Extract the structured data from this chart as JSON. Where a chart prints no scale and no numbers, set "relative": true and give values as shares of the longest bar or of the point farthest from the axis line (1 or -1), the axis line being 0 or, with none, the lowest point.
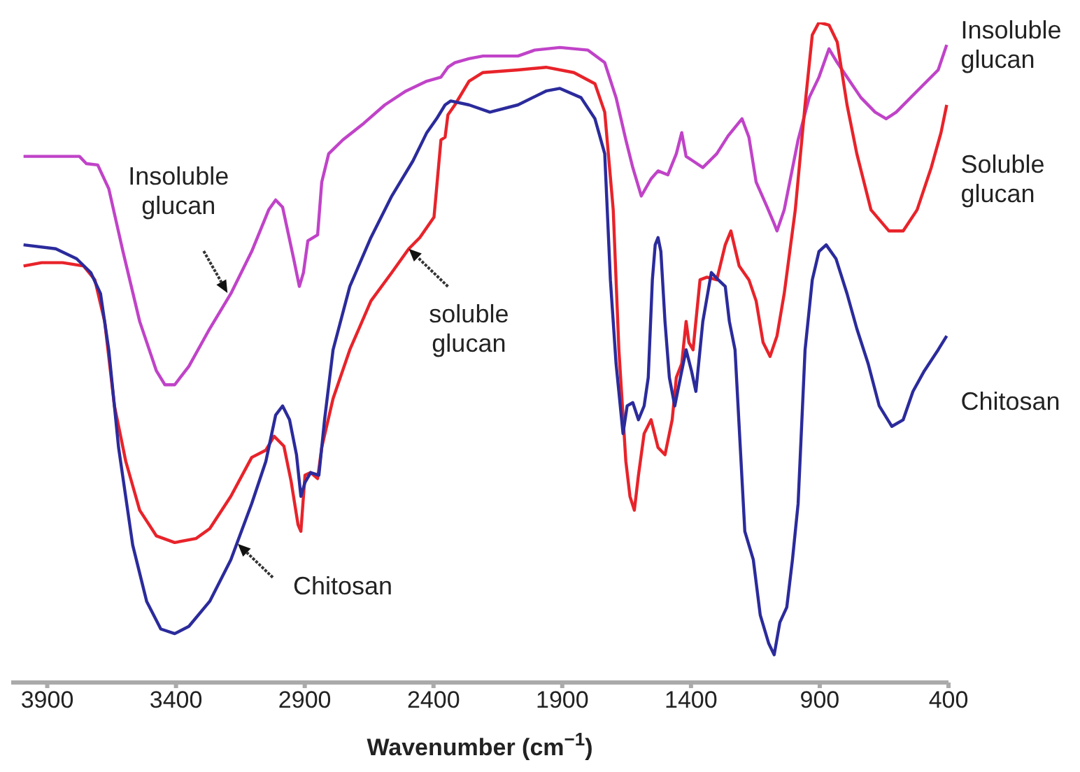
{
  "chart_data": {
    "type": "line",
    "relative": true,
    "xlabel": "Wavenumber (cm$^{−1}$)",
    "xlim": [
      4040,
      400
    ],
    "xticks": [
      3900,
      3400,
      2900,
      2400,
      1900,
      1400,
      900,
      400
    ],
    "series": [
      {
        "name": "Insoluble glucan",
        "color": "#c043c8",
        "x": [
          3992,
          3775,
          3748,
          3704,
          3661,
          3606,
          3541,
          3476,
          3443,
          3405,
          3350,
          3269,
          3187,
          3106,
          3040,
          3013,
          2986,
          2943,
          2921,
          2905,
          2888,
          2850,
          2834,
          2807,
          2752,
          2671,
          2589,
          2507,
          2426,
          2371,
          2344,
          2317,
          2262,
          2208,
          2072,
          2007,
          1909,
          1800,
          1735,
          1691,
          1653,
          1626,
          1593,
          1555,
          1528,
          1490,
          1457,
          1436,
          1419,
          1392,
          1354,
          1300,
          1256,
          1202,
          1175,
          1147,
          1104,
          1077,
          1066,
          1038,
          984,
          941,
          903,
          864,
          832,
          794,
          740,
          685,
          642,
          603,
          522,
          440,
          407
        ],
        "values": [
          0.797,
          0.797,
          0.786,
          0.784,
          0.748,
          0.653,
          0.547,
          0.472,
          0.451,
          0.451,
          0.479,
          0.536,
          0.589,
          0.653,
          0.716,
          0.731,
          0.72,
          0.642,
          0.6,
          0.621,
          0.669,
          0.678,
          0.758,
          0.801,
          0.822,
          0.847,
          0.875,
          0.896,
          0.911,
          0.917,
          0.932,
          0.939,
          0.945,
          0.949,
          0.949,
          0.958,
          0.962,
          0.958,
          0.939,
          0.886,
          0.822,
          0.78,
          0.737,
          0.763,
          0.775,
          0.769,
          0.801,
          0.833,
          0.797,
          0.79,
          0.78,
          0.801,
          0.828,
          0.854,
          0.826,
          0.758,
          0.72,
          0.695,
          0.684,
          0.716,
          0.822,
          0.886,
          0.917,
          0.96,
          0.939,
          0.917,
          0.886,
          0.864,
          0.854,
          0.864,
          0.896,
          0.928,
          0.966
        ]
      },
      {
        "name": "Soluble glucan",
        "color": "#e8232a",
        "x": [
          3992,
          3922,
          3840,
          3759,
          3715,
          3677,
          3639,
          3595,
          3541,
          3476,
          3405,
          3323,
          3269,
          3187,
          3106,
          3051,
          3019,
          2981,
          2953,
          2926,
          2915,
          2899,
          2877,
          2850,
          2834,
          2790,
          2725,
          2643,
          2562,
          2496,
          2453,
          2398,
          2371,
          2355,
          2344,
          2317,
          2262,
          2208,
          2072,
          1963,
          1855,
          1773,
          1735,
          1702,
          1680,
          1653,
          1637,
          1620,
          1604,
          1582,
          1555,
          1528,
          1501,
          1473,
          1457,
          1436,
          1419,
          1408,
          1392,
          1365,
          1338,
          1300,
          1267,
          1245,
          1213,
          1175,
          1147,
          1120,
          1093,
          1066,
          1038,
          995,
          957,
          929,
          903,
          864,
          832,
          794,
          756,
          701,
          631,
          576,
          522,
          467,
          429,
          407
        ],
        "values": [
          0.631,
          0.636,
          0.636,
          0.631,
          0.61,
          0.547,
          0.419,
          0.335,
          0.261,
          0.222,
          0.212,
          0.218,
          0.233,
          0.282,
          0.341,
          0.352,
          0.373,
          0.358,
          0.305,
          0.239,
          0.229,
          0.314,
          0.318,
          0.309,
          0.356,
          0.43,
          0.504,
          0.578,
          0.621,
          0.657,
          0.674,
          0.705,
          0.822,
          0.826,
          0.86,
          0.875,
          0.911,
          0.924,
          0.928,
          0.932,
          0.924,
          0.907,
          0.864,
          0.716,
          0.504,
          0.335,
          0.282,
          0.261,
          0.314,
          0.377,
          0.398,
          0.356,
          0.345,
          0.398,
          0.462,
          0.483,
          0.547,
          0.515,
          0.504,
          0.61,
          0.614,
          0.61,
          0.663,
          0.684,
          0.631,
          0.61,
          0.578,
          0.515,
          0.494,
          0.525,
          0.589,
          0.716,
          0.875,
          0.981,
          1,
          0.996,
          0.97,
          0.875,
          0.801,
          0.716,
          0.684,
          0.684,
          0.716,
          0.78,
          0.833,
          0.875
        ]
      },
      {
        "name": "Chitosan",
        "color": "#2b2b9c",
        "x": [
          3992,
          3867,
          3786,
          3731,
          3693,
          3661,
          3623,
          3568,
          3514,
          3459,
          3405,
          3350,
          3269,
          3187,
          3106,
          3051,
          3013,
          2986,
          2959,
          2932,
          2915,
          2899,
          2877,
          2845,
          2823,
          2790,
          2725,
          2643,
          2562,
          2480,
          2426,
          2388,
          2355,
          2333,
          2262,
          2181,
          2072,
          1963,
          1909,
          1827,
          1773,
          1735,
          1713,
          1691,
          1664,
          1648,
          1626,
          1604,
          1582,
          1566,
          1550,
          1539,
          1528,
          1517,
          1501,
          1484,
          1463,
          1441,
          1419,
          1398,
          1381,
          1354,
          1321,
          1294,
          1267,
          1251,
          1229,
          1191,
          1158,
          1131,
          1098,
          1077,
          1055,
          1028,
          1006,
          984,
          957,
          929,
          903,
          875,
          837,
          794,
          756,
          712,
          669,
          620,
          576,
          538,
          494,
          440,
          407
        ],
        "values": [
          0.663,
          0.657,
          0.642,
          0.621,
          0.589,
          0.504,
          0.356,
          0.208,
          0.123,
          0.081,
          0.074,
          0.085,
          0.123,
          0.186,
          0.271,
          0.335,
          0.405,
          0.419,
          0.398,
          0.345,
          0.282,
          0.303,
          0.318,
          0.314,
          0.398,
          0.504,
          0.6,
          0.674,
          0.737,
          0.79,
          0.833,
          0.854,
          0.875,
          0.881,
          0.875,
          0.864,
          0.875,
          0.896,
          0.9,
          0.886,
          0.854,
          0.801,
          0.61,
          0.483,
          0.377,
          0.419,
          0.424,
          0.398,
          0.419,
          0.462,
          0.61,
          0.663,
          0.674,
          0.653,
          0.547,
          0.462,
          0.419,
          0.462,
          0.504,
          0.472,
          0.441,
          0.547,
          0.621,
          0.61,
          0.6,
          0.547,
          0.504,
          0.229,
          0.186,
          0.102,
          0.059,
          0.042,
          0.091,
          0.114,
          0.186,
          0.271,
          0.504,
          0.61,
          0.653,
          0.663,
          0.642,
          0.589,
          0.536,
          0.483,
          0.419,
          0.388,
          0.398,
          0.441,
          0.472,
          0.504,
          0.525
        ]
      }
    ],
    "annotations": [
      {
        "text": "Insoluble glucan",
        "x": 3200,
        "y": 0.59
      },
      {
        "text": "soluble glucan",
        "x": 2496,
        "y": 0.657
      },
      {
        "text": "Chitosan",
        "x": 3160,
        "y": 0.21
      }
    ]
  }
}
